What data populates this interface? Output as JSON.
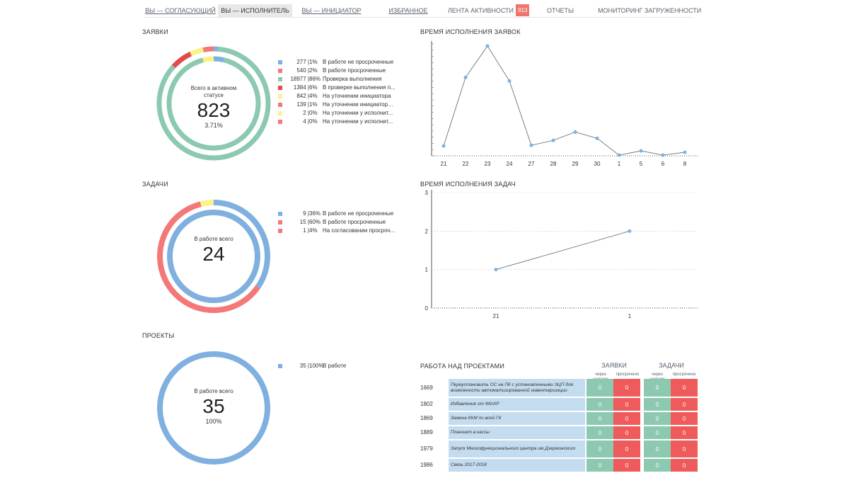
{
  "nav": {
    "tabs": [
      {
        "label": "ВЫ — СОГЛАСУЮЩИЙ"
      },
      {
        "label": "ВЫ — ИСПОЛНИТЕЛЬ"
      },
      {
        "label": "ВЫ — ИНИЦИАТОР"
      },
      {
        "label": "ИЗБРАННОЕ"
      },
      {
        "label": "ЛЕНТА АКТИВНОСТИ",
        "badge": "913"
      },
      {
        "label": "ОТЧЕТЫ"
      },
      {
        "label": "МОНИТОРИНГ ЗАГРУЖЕННОСТИ"
      }
    ],
    "active_tab": "ВЫ — ИСПОЛНИТЕЛЬ"
  },
  "colors": {
    "blue": "#7fb0e0",
    "red": "#f47878",
    "teal": "#8cc9b0",
    "darkred": "#e24b4b",
    "yellow": "#fbf28a",
    "coral": "#f59090"
  },
  "requests": {
    "title": "ЗАЯВКИ",
    "center_caption": "Всего в активном статусе",
    "center_value": "823",
    "center_pct": "3.71%",
    "legend": [
      {
        "count": "277",
        "pct": "1%",
        "label": "В работе не просроченные",
        "color": "#7fb0e0"
      },
      {
        "count": "540",
        "pct": "2%",
        "label": "В работе просроченные",
        "color": "#f47878"
      },
      {
        "count": "18977",
        "pct": "86%",
        "label": "Проверка выполнения",
        "color": "#8cc9b0"
      },
      {
        "count": "1384",
        "pct": "6%",
        "label": "В проверке выполнения п...",
        "color": "#e24b4b"
      },
      {
        "count": "842",
        "pct": "4%",
        "label": "На уточнении инициатора",
        "color": "#fbf28a"
      },
      {
        "count": "139",
        "pct": "1%",
        "label": "На уточнении инициатора...",
        "color": "#f47878"
      },
      {
        "count": "2",
        "pct": "0%",
        "label": "На уточнении у исполнит...",
        "color": "#fbf28a"
      },
      {
        "count": "4",
        "pct": "0%",
        "label": "На уточнении у исполнит...",
        "color": "#f47878"
      }
    ]
  },
  "tasks": {
    "title": "ЗАДАЧИ",
    "center_caption": "В работе всего",
    "center_value": "24",
    "legend": [
      {
        "count": "9",
        "pct": "36%",
        "label": "В работе не просроченные",
        "color": "#7fb0e0"
      },
      {
        "count": "15",
        "pct": "60%",
        "label": "В работе просроченные",
        "color": "#f47878"
      },
      {
        "count": "1",
        "pct": "4%",
        "label": "На согласовании просроч...",
        "color": "#f47878"
      }
    ]
  },
  "projects": {
    "title": "ПРОЕКТЫ",
    "center_caption": "В работе всего",
    "center_value": "35",
    "center_pct": "100%",
    "legend": [
      {
        "count": "35",
        "pct": "100%",
        "label": "В работе",
        "color": "#7fb0e0"
      }
    ]
  },
  "chart_data": [
    {
      "type": "line",
      "title": "ВРЕМЯ ИСПОЛНЕНИЯ ЗАЯВОК",
      "categories": [
        "21",
        "22",
        "23",
        "24",
        "27",
        "28",
        "29",
        "30",
        "1",
        "5",
        "6",
        "8"
      ],
      "values": [
        14,
        112,
        157,
        107,
        15,
        22,
        34,
        25,
        1,
        7,
        1,
        5
      ],
      "ylim": [
        0,
        160
      ],
      "xlabel": "",
      "ylabel": ""
    },
    {
      "type": "line",
      "title": "ВРЕМЯ ИСПОЛНЕНИЯ ЗАДАЧ",
      "categories": [
        "21",
        "1"
      ],
      "values": [
        1,
        2
      ],
      "ylim": [
        0,
        3
      ],
      "yticks": [
        "0",
        "1",
        "2",
        "3"
      ],
      "xlabel": "",
      "ylabel": ""
    }
  ],
  "project_work": {
    "title": "РАБОТА НАД ПРОЕКТАМИ",
    "groups": [
      "ЗАЯВКИ",
      "ЗАДАЧИ"
    ],
    "subheaders": [
      "через неделю",
      "просрочено",
      "через неделю",
      "просрочено"
    ],
    "rows": [
      {
        "id": "1669",
        "name": "Переустановить ОС на ПК с установленными ЭЦП для возможности автоматизированной инвентаризации",
        "v": [
          "0",
          "0",
          "0",
          "0"
        ]
      },
      {
        "id": "1802",
        "name": "Избавление от WinXP",
        "v": [
          "0",
          "0",
          "0",
          "0"
        ]
      },
      {
        "id": "1869",
        "name": "Замена ККМ по всей ГК",
        "v": [
          "0",
          "0",
          "0",
          "0"
        ]
      },
      {
        "id": "1889",
        "name": "Планшет в кассы",
        "v": [
          "0",
          "0",
          "0",
          "0"
        ]
      },
      {
        "id": "1979",
        "name": "Запуск Многофункционального центра им Дзержинского",
        "v": [
          "0",
          "0",
          "0",
          "0"
        ]
      },
      {
        "id": "1986",
        "name": "Связь 2017-2018",
        "v": [
          "0",
          "0",
          "0",
          "0"
        ]
      }
    ]
  }
}
